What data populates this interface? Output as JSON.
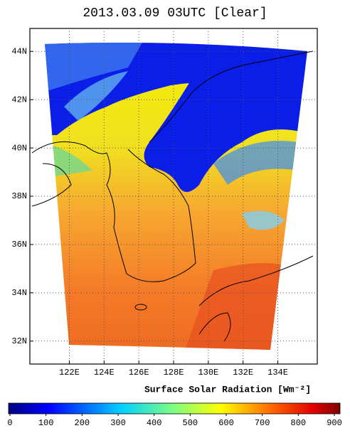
{
  "title": "2013.03.09 03UTC [Clear]",
  "map": {
    "xlim": [
      119.73,
      136.27
    ],
    "ylim": [
      31.05,
      44.95
    ],
    "xticks": [
      {
        "value": 122,
        "label": "122E"
      },
      {
        "value": 124,
        "label": "124E"
      },
      {
        "value": 126,
        "label": "126E"
      },
      {
        "value": 128,
        "label": "128E"
      },
      {
        "value": 130,
        "label": "130E"
      },
      {
        "value": 132,
        "label": "132E"
      },
      {
        "value": 134,
        "label": "134E"
      }
    ],
    "yticks": [
      {
        "value": 32,
        "label": "32N"
      },
      {
        "value": 34,
        "label": "34N"
      },
      {
        "value": 36,
        "label": "36N"
      },
      {
        "value": 38,
        "label": "38N"
      },
      {
        "value": 40,
        "label": "40N"
      },
      {
        "value": 42,
        "label": "42N"
      },
      {
        "value": 44,
        "label": "44N"
      }
    ],
    "grid": true
  },
  "colorbar": {
    "label": "Surface Solar Radiation [Wm⁻²]",
    "lim": [
      0,
      900
    ],
    "ticks": [
      0,
      100,
      200,
      300,
      400,
      500,
      600,
      700,
      800,
      900
    ]
  }
}
